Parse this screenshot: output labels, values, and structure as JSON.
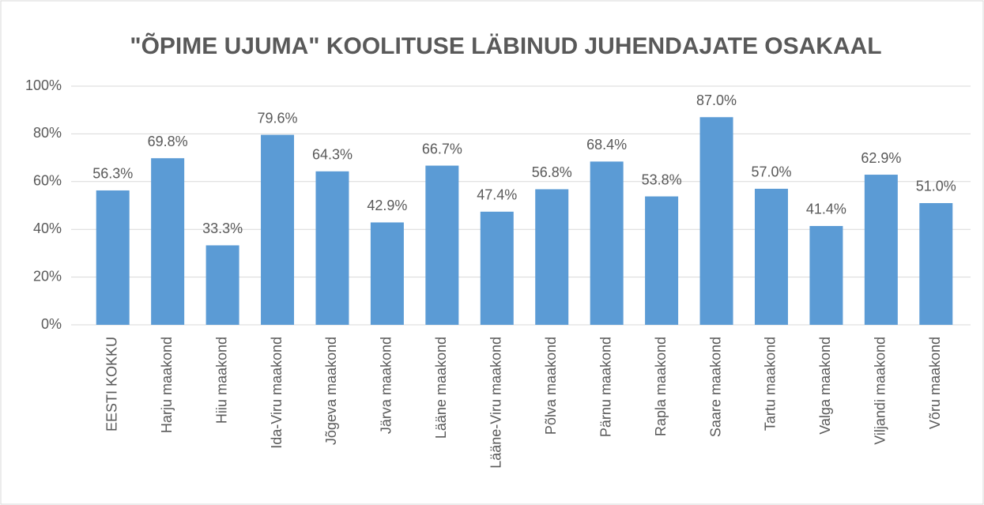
{
  "chart_data": {
    "type": "bar",
    "title": "\"ÕPIME UJUMA\" KOOLITUSE LÄBINUD JUHENDAJATE OSAKAAL",
    "categories": [
      "EESTI KOKKU",
      "Harju maakond",
      "Hiiu maakond",
      "Ida-Viru maakond",
      "Jõgeva maakond",
      "Järva maakond",
      "Lääne maakond",
      "Lääne-Viru maakond",
      "Põlva maakond",
      "Pärnu maakond",
      "Rapla maakond",
      "Saare maakond",
      "Tartu maakond",
      "Valga maakond",
      "Viljandi maakond",
      "Võru maakond"
    ],
    "values": [
      56.3,
      69.8,
      33.3,
      79.6,
      64.3,
      42.9,
      66.7,
      47.4,
      56.8,
      68.4,
      53.8,
      87.0,
      57.0,
      41.4,
      62.9,
      51.0
    ],
    "value_labels": [
      "56.3%",
      "69.8%",
      "33.3%",
      "79.6%",
      "64.3%",
      "42.9%",
      "66.7%",
      "47.4%",
      "56.8%",
      "68.4%",
      "53.8%",
      "87.0%",
      "57.0%",
      "41.4%",
      "62.9%",
      "51.0%"
    ],
    "color": "#5b9bd5",
    "ylim": [
      0,
      100
    ],
    "yticks": [
      {
        "value": 0,
        "label": "0%"
      },
      {
        "value": 20,
        "label": "20%"
      },
      {
        "value": 40,
        "label": "40%"
      },
      {
        "value": 60,
        "label": "60%"
      },
      {
        "value": 80,
        "label": "80%"
      },
      {
        "value": 100,
        "label": "100%"
      }
    ],
    "grid": true
  }
}
